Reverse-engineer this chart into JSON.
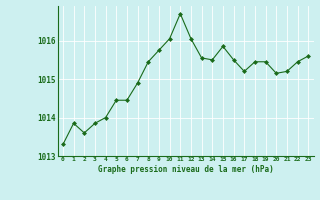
{
  "x": [
    0,
    1,
    2,
    3,
    4,
    5,
    6,
    7,
    8,
    9,
    10,
    11,
    12,
    13,
    14,
    15,
    16,
    17,
    18,
    19,
    20,
    21,
    22,
    23
  ],
  "y": [
    1013.3,
    1013.85,
    1013.6,
    1013.85,
    1014.0,
    1014.45,
    1014.45,
    1014.9,
    1015.45,
    1015.75,
    1016.05,
    1016.7,
    1016.05,
    1015.55,
    1015.5,
    1015.85,
    1015.5,
    1015.2,
    1015.45,
    1015.45,
    1015.15,
    1015.2,
    1015.45,
    1015.6
  ],
  "line_color": "#1a6b1a",
  "marker": "D",
  "marker_size": 2.0,
  "bg_color": "#cdf0f0",
  "grid_color": "#b0d8d8",
  "label_color": "#1a6b1a",
  "xlabel": "Graphe pression niveau de la mer (hPa)",
  "ylim": [
    1013.0,
    1016.9
  ],
  "yticks": [
    1013,
    1014,
    1015,
    1016
  ],
  "xlim": [
    -0.5,
    23.5
  ],
  "xticks": [
    0,
    1,
    2,
    3,
    4,
    5,
    6,
    7,
    8,
    9,
    10,
    11,
    12,
    13,
    14,
    15,
    16,
    17,
    18,
    19,
    20,
    21,
    22,
    23
  ]
}
